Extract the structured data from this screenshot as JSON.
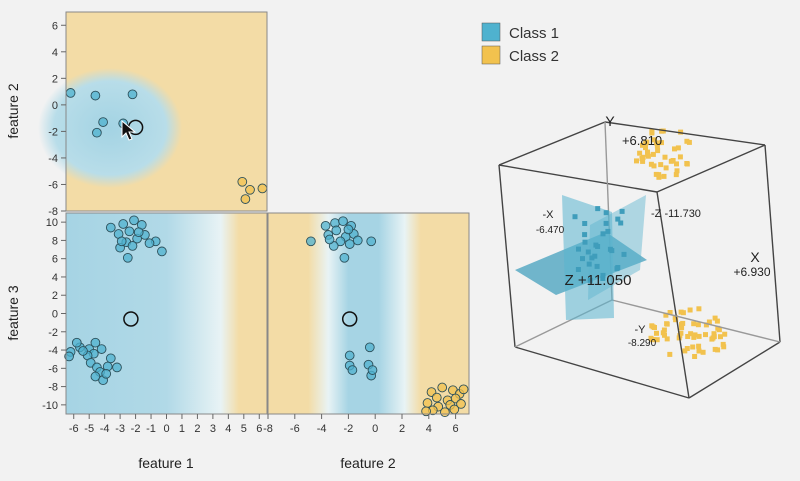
{
  "legend": {
    "items": [
      {
        "label": "Class 1",
        "color": "#4fb2cf"
      },
      {
        "label": "Class 2",
        "color": "#f2c24e"
      }
    ]
  },
  "colors": {
    "class1": "#4fb2cf",
    "class2": "#f2c24e",
    "region1": "#a8d6e4",
    "region2": "#f3dca6",
    "background": "#f2f2f2"
  },
  "chart_data": [
    {
      "type": "scatter",
      "panel": "feature 1 vs feature 2",
      "xlabel": "",
      "ylabel": "feature 2",
      "xlim": [
        -6.5,
        6.5
      ],
      "ylim": [
        -8,
        7
      ],
      "yticks": [
        "6",
        "4",
        "2",
        "0",
        "-2",
        "-4",
        "-6",
        "-8"
      ],
      "query_point": {
        "x": -2,
        "y": -1.7
      },
      "series": [
        {
          "name": "Class 1",
          "points": [
            [
              -6.2,
              0.9
            ],
            [
              -4.6,
              0.7
            ],
            [
              -2.2,
              0.8
            ],
            [
              -4.1,
              -1.3
            ],
            [
              -4.5,
              -2.1
            ],
            [
              -2.8,
              -1.4
            ]
          ]
        },
        {
          "name": "Class 2",
          "points": [
            [
              4.9,
              -5.8
            ],
            [
              5.4,
              -6.4
            ],
            [
              6.2,
              -6.3
            ],
            [
              5.1,
              -7.1
            ]
          ]
        }
      ]
    },
    {
      "type": "scatter",
      "panel": "feature 1 vs feature 3",
      "xlabel": "feature 1",
      "ylabel": "feature 3",
      "xlim": [
        -6.5,
        6.5
      ],
      "ylim": [
        -11,
        11
      ],
      "xticks": [
        "-6",
        "-5",
        "-4",
        "-3",
        "-2",
        "-1",
        "0",
        "1",
        "2",
        "3",
        "4",
        "5",
        "6"
      ],
      "yticks": [
        "10",
        "8",
        "6",
        "4",
        "2",
        "0",
        "-2",
        "-4",
        "-6",
        "-8",
        "-10"
      ],
      "query_point": {
        "x": -2.3,
        "y": -0.6
      },
      "series": [
        {
          "name": "Class 1",
          "points": [
            [
              -3.6,
              9.4
            ],
            [
              -2.8,
              9.8
            ],
            [
              -2.1,
              10.2
            ],
            [
              -1.6,
              9.7
            ],
            [
              -2.4,
              9.0
            ],
            [
              -3.1,
              8.7
            ],
            [
              -1.9,
              8.2
            ],
            [
              -2.6,
              7.8
            ],
            [
              -1.4,
              8.6
            ],
            [
              -0.7,
              7.9
            ],
            [
              -2.2,
              7.4
            ],
            [
              -3.0,
              7.2
            ],
            [
              -1.1,
              7.7
            ],
            [
              -2.5,
              6.1
            ],
            [
              -0.3,
              6.8
            ],
            [
              -1.8,
              8.9
            ],
            [
              -2.9,
              7.9
            ],
            [
              -6.2,
              -4.2
            ],
            [
              -5.6,
              -3.7
            ],
            [
              -5.0,
              -3.9
            ],
            [
              -4.6,
              -3.2
            ],
            [
              -4.2,
              -3.9
            ],
            [
              -4.7,
              -4.4
            ],
            [
              -5.1,
              -4.6
            ],
            [
              -4.9,
              -5.4
            ],
            [
              -4.5,
              -5.9
            ],
            [
              -3.8,
              -5.8
            ],
            [
              -3.2,
              -5.9
            ],
            [
              -4.3,
              -6.4
            ],
            [
              -4.6,
              -6.9
            ],
            [
              -4.1,
              -7.3
            ],
            [
              -3.6,
              -4.9
            ],
            [
              -5.8,
              -3.2
            ],
            [
              -6.3,
              -4.7
            ],
            [
              -3.9,
              -6.6
            ],
            [
              -5.4,
              -4.1
            ]
          ]
        },
        {
          "name": "Class 2",
          "points": []
        }
      ]
    },
    {
      "type": "scatter",
      "panel": "feature 2 vs feature 3",
      "xlabel": "feature 2",
      "ylabel": "",
      "xlim": [
        -8,
        7
      ],
      "ylim": [
        -11,
        11
      ],
      "xticks": [
        "-8",
        "-6",
        "-4",
        "-2",
        "0",
        "2",
        "4",
        "6"
      ],
      "query_point": {
        "x": -1.9,
        "y": -0.6
      },
      "series": [
        {
          "name": "Class 1",
          "points": [
            [
              -3.7,
              9.6
            ],
            [
              -3.0,
              9.9
            ],
            [
              -2.4,
              10.1
            ],
            [
              -1.8,
              9.6
            ],
            [
              -2.9,
              9.1
            ],
            [
              -3.5,
              8.6
            ],
            [
              -2.2,
              8.4
            ],
            [
              -1.6,
              8.7
            ],
            [
              -2.6,
              7.9
            ],
            [
              -3.1,
              7.4
            ],
            [
              -1.9,
              7.6
            ],
            [
              -1.3,
              8.0
            ],
            [
              -2.3,
              6.1
            ],
            [
              -4.8,
              7.9
            ],
            [
              -0.3,
              7.9
            ],
            [
              -3.4,
              8.1
            ],
            [
              -2.0,
              9.2
            ],
            [
              -0.4,
              -3.7
            ],
            [
              -0.5,
              -5.6
            ],
            [
              -1.9,
              -5.7
            ],
            [
              -1.7,
              -6.2
            ],
            [
              -0.3,
              -6.8
            ],
            [
              -1.9,
              -4.6
            ],
            [
              -0.2,
              -6.2
            ]
          ]
        },
        {
          "name": "Class 2",
          "points": [
            [
              4.2,
              -8.6
            ],
            [
              5.0,
              -8.1
            ],
            [
              5.8,
              -8.4
            ],
            [
              6.3,
              -8.8
            ],
            [
              4.6,
              -9.2
            ],
            [
              5.4,
              -9.5
            ],
            [
              6.0,
              -9.3
            ],
            [
              3.9,
              -9.8
            ],
            [
              4.7,
              -10.2
            ],
            [
              5.6,
              -10.0
            ],
            [
              6.4,
              -9.9
            ],
            [
              4.3,
              -10.6
            ],
            [
              5.2,
              -10.8
            ],
            [
              5.9,
              -10.5
            ],
            [
              3.8,
              -10.7
            ],
            [
              6.6,
              -8.3
            ]
          ]
        }
      ]
    },
    {
      "type": "scatter",
      "panel": "3D view",
      "axis_labels": {
        "y_pos": "Y",
        "y_pos_value": "+6.810",
        "x_neg": "-X",
        "x_neg_value": "-6.470",
        "z_neg": "-Z -11.730",
        "x_pos": "X",
        "x_pos_value": "+6.930",
        "z_pos": "Z +11.050",
        "y_neg": "-Y",
        "y_neg_value": "-8.290"
      }
    }
  ],
  "xlabels": {
    "left": "feature 1",
    "right": "feature 2"
  },
  "ylabels": {
    "top": "feature 2",
    "bottom": "feature 3"
  }
}
